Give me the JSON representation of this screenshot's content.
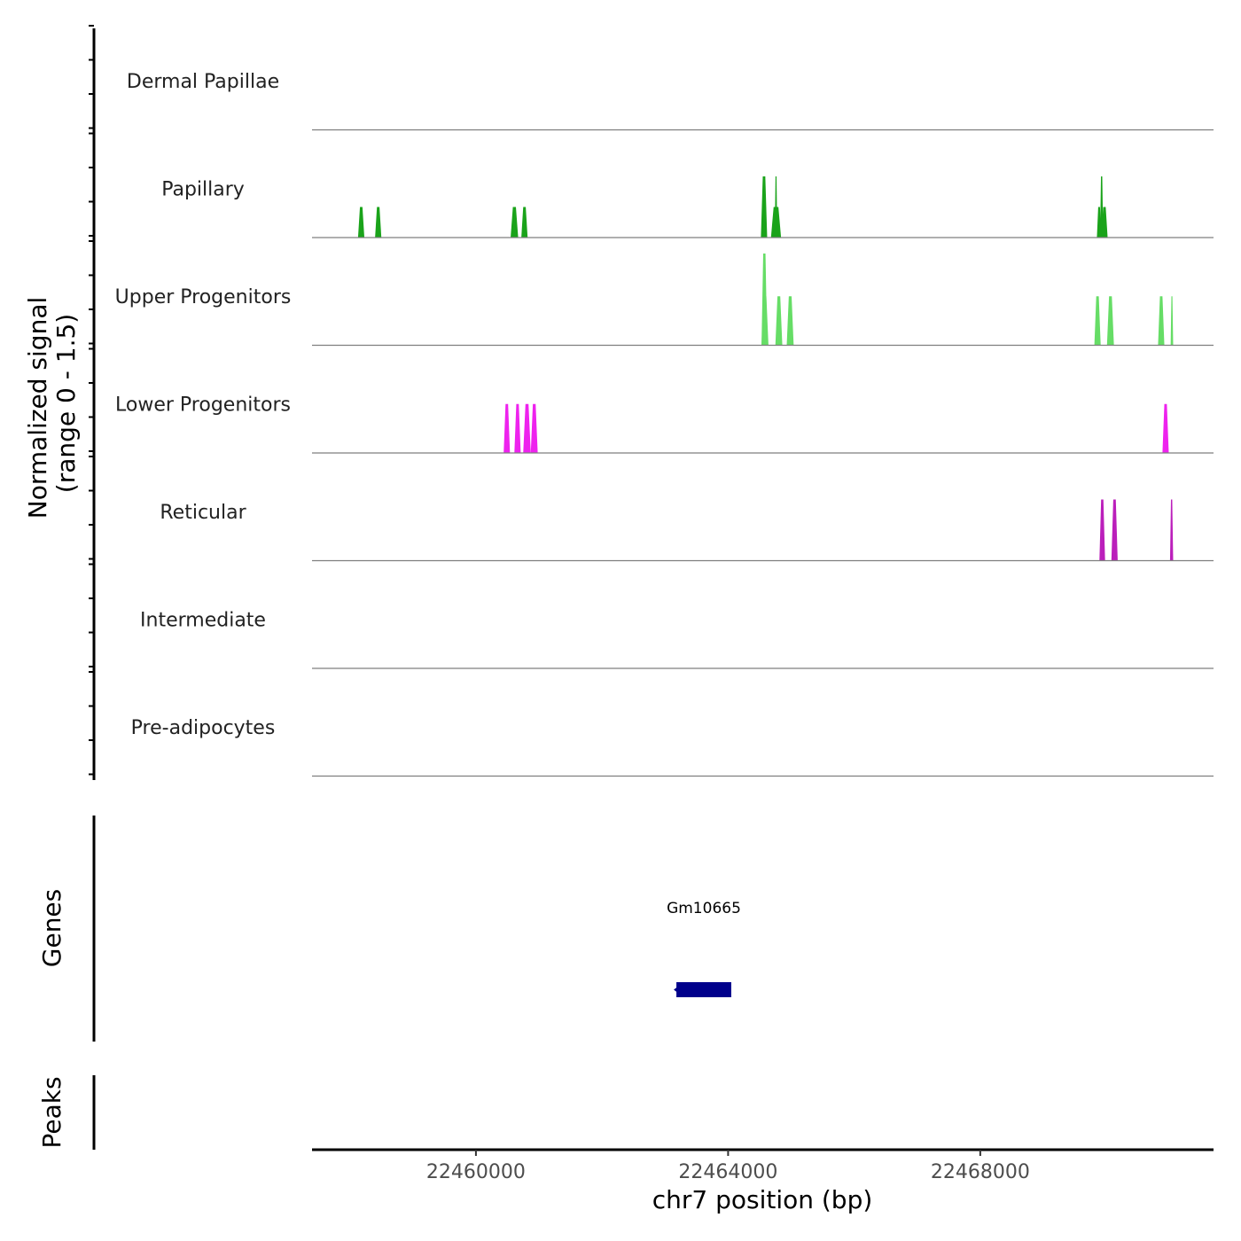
{
  "chart_data": {
    "type": "area",
    "title": "",
    "xlabel": "chr7 position (bp)",
    "ylabel_line1": "Normalized signal",
    "ylabel_line2": "(range 0 - 1.5)",
    "genes_label": "Genes",
    "peaks_label": "Peaks",
    "xlim": [
      22457400,
      22471700
    ],
    "ylim": [
      0,
      1.5
    ],
    "x_ticks": [
      22460000,
      22464000,
      22468000
    ],
    "x_tick_labels": [
      "22460000",
      "22464000",
      "22468000"
    ],
    "series": [
      {
        "name": "Dermal Papillae",
        "color": "#1aa31a",
        "peaks": []
      },
      {
        "name": "Papillary",
        "color": "#1aa31a",
        "peaks": [
          {
            "s": 22458130,
            "e": 22458230,
            "h": 0.5
          },
          {
            "s": 22458400,
            "e": 22458500,
            "h": 0.5
          },
          {
            "s": 22460550,
            "e": 22460670,
            "h": 0.5
          },
          {
            "s": 22460720,
            "e": 22460820,
            "h": 0.5
          },
          {
            "s": 22464520,
            "e": 22464620,
            "h": 1.0
          },
          {
            "s": 22464680,
            "e": 22464840,
            "h": 0.5
          },
          {
            "s": 22464740,
            "e": 22464780,
            "h": 1.0
          },
          {
            "s": 22469850,
            "e": 22469920,
            "h": 0.5
          },
          {
            "s": 22469900,
            "e": 22469950,
            "h": 1.0
          },
          {
            "s": 22469920,
            "e": 22470020,
            "h": 0.5
          }
        ]
      },
      {
        "name": "Upper Progenitors",
        "color": "#66dd66",
        "peaks": [
          {
            "s": 22464530,
            "e": 22464620,
            "h": 1.5
          },
          {
            "s": 22464530,
            "e": 22464640,
            "h": 0.8
          },
          {
            "s": 22464750,
            "e": 22464860,
            "h": 0.8
          },
          {
            "s": 22464930,
            "e": 22465040,
            "h": 0.8
          },
          {
            "s": 22469810,
            "e": 22469910,
            "h": 0.8
          },
          {
            "s": 22470010,
            "e": 22470120,
            "h": 0.8
          },
          {
            "s": 22470820,
            "e": 22470920,
            "h": 0.8
          },
          {
            "s": 22471020,
            "e": 22471060,
            "h": 0.8
          }
        ]
      },
      {
        "name": "Lower Progenitors",
        "color": "#ee22ee",
        "peaks": [
          {
            "s": 22460440,
            "e": 22460540,
            "h": 0.8
          },
          {
            "s": 22460610,
            "e": 22460710,
            "h": 0.8
          },
          {
            "s": 22460750,
            "e": 22460870,
            "h": 0.8
          },
          {
            "s": 22460870,
            "e": 22460980,
            "h": 0.8
          },
          {
            "s": 22470890,
            "e": 22470990,
            "h": 0.8
          }
        ]
      },
      {
        "name": "Reticular",
        "color": "#bb1fbb",
        "peaks": [
          {
            "s": 22469890,
            "e": 22469980,
            "h": 1.0
          },
          {
            "s": 22470080,
            "e": 22470180,
            "h": 1.0
          },
          {
            "s": 22471010,
            "e": 22471060,
            "h": 1.0
          }
        ]
      },
      {
        "name": "Intermediate",
        "color": "#1aa31a",
        "peaks": []
      },
      {
        "name": "Pre-adipocytes",
        "color": "#1aa31a",
        "peaks": []
      }
    ],
    "genes": [
      {
        "name": "Gm10665",
        "start": 22463180,
        "end": 22464050,
        "strand": "-",
        "color": "#00008b"
      }
    ]
  }
}
